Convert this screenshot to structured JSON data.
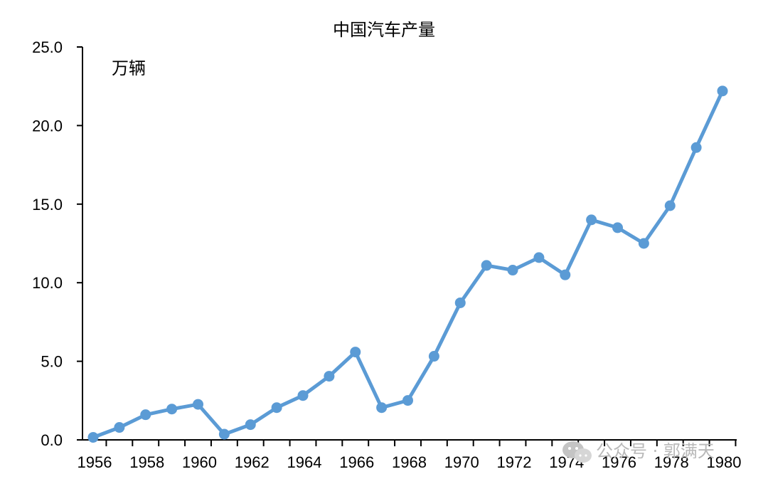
{
  "chart_data": {
    "type": "line",
    "title": "中国汽车产量",
    "unit_label": "万辆",
    "x": [
      1956,
      1957,
      1958,
      1959,
      1960,
      1961,
      1962,
      1963,
      1964,
      1965,
      1966,
      1967,
      1968,
      1969,
      1970,
      1971,
      1972,
      1973,
      1974,
      1975,
      1976,
      1977,
      1978,
      1979,
      1980
    ],
    "x_tick_labels": [
      "1956",
      "1958",
      "1960",
      "1962",
      "1964",
      "1966",
      "1968",
      "1970",
      "1972",
      "1974",
      "1976",
      "1978",
      "1980"
    ],
    "y_tick_labels": [
      "0.0",
      "5.0",
      "10.0",
      "15.0",
      "20.0",
      "25.0"
    ],
    "ylim": [
      0,
      25
    ],
    "series": [
      {
        "values": [
          0.16,
          0.79,
          1.6,
          1.96,
          2.26,
          0.36,
          0.97,
          2.05,
          2.82,
          4.05,
          5.59,
          2.05,
          2.51,
          5.32,
          8.72,
          11.1,
          10.8,
          11.6,
          10.5,
          14.0,
          13.5,
          12.5,
          14.9,
          18.6,
          22.2
        ],
        "color": "#5b9bd5"
      }
    ],
    "grid": false,
    "legend": "none"
  },
  "watermark": {
    "text": "公众号 · 郭满天",
    "icon": "wechat-icon"
  }
}
